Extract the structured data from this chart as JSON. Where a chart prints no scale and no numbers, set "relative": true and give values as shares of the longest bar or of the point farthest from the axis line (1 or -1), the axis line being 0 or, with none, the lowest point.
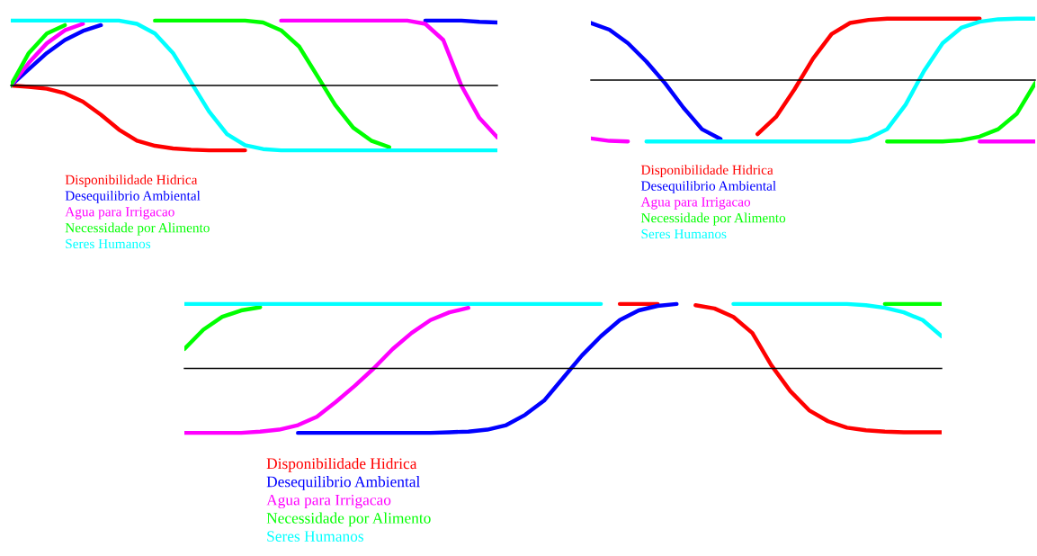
{
  "chart_data": [
    {
      "type": "line",
      "relative": true,
      "legend": "bottom",
      "categories": [
        null,
        null,
        null,
        null,
        null,
        null,
        null,
        null,
        null,
        null,
        null,
        null,
        null,
        null,
        null,
        null,
        null,
        null,
        null,
        null,
        null,
        null,
        null,
        null,
        null,
        null,
        null,
        null
      ],
      "series": [
        {
          "name": "Disponibilidade Hidrica",
          "color": "#ff0000",
          "values": [
            0,
            -0.02,
            -0.05,
            -0.12,
            -0.25,
            -0.45,
            -0.68,
            -0.85,
            -0.93,
            -0.97,
            -0.99,
            -1,
            -1,
            -1,
            null,
            null,
            null,
            null,
            null,
            null,
            null,
            null,
            null,
            null,
            null,
            null,
            null,
            null
          ]
        },
        {
          "name": "Desequilibrio Ambiental",
          "color": "#0000ff",
          "values": [
            0,
            0.25,
            0.5,
            0.7,
            0.84,
            0.93,
            null,
            null,
            null,
            null,
            null,
            null,
            null,
            null,
            null,
            null,
            null,
            null,
            null,
            null,
            null,
            null,
            null,
            1,
            1,
            1,
            0.98,
            0.97
          ]
        },
        {
          "name": "Agua para Irrigacao",
          "color": "#ff00ff",
          "values": [
            0,
            0.35,
            0.65,
            0.85,
            0.95,
            null,
            null,
            null,
            null,
            null,
            null,
            null,
            null,
            null,
            null,
            1,
            1,
            1,
            1,
            1,
            1,
            1,
            1,
            0.95,
            0.7,
            0,
            -0.5,
            -0.8
          ]
        },
        {
          "name": "Necessidade por Alimento",
          "color": "#00ff00",
          "values": [
            0,
            0.5,
            0.8,
            0.93,
            null,
            null,
            null,
            null,
            1,
            1,
            1,
            1,
            1,
            1,
            0.97,
            0.85,
            0.6,
            0.15,
            -0.3,
            -0.65,
            -0.85,
            -0.95,
            null,
            null,
            null,
            null,
            null,
            null
          ]
        },
        {
          "name": "Seres Humanos",
          "color": "#00ffff",
          "values": [
            1,
            1,
            1,
            1,
            1,
            1,
            1,
            0.95,
            0.8,
            0.5,
            0.05,
            -0.4,
            -0.75,
            -0.92,
            -0.98,
            -1,
            -1,
            -1,
            -1,
            -1,
            -1,
            -1,
            -1,
            -1,
            -1,
            -1,
            -1,
            -1
          ]
        }
      ]
    },
    {
      "type": "line",
      "relative": true,
      "legend": "bottom",
      "categories": [
        null,
        null,
        null,
        null,
        null,
        null,
        null,
        null,
        null,
        null,
        null,
        null,
        null,
        null,
        null,
        null,
        null,
        null,
        null,
        null,
        null,
        null,
        null,
        null,
        null
      ],
      "series": [
        {
          "name": "Disponibilidade Hidrica",
          "color": "#ff0000",
          "values": [
            null,
            null,
            null,
            null,
            null,
            null,
            null,
            null,
            null,
            -0.88,
            -0.6,
            -0.15,
            0.35,
            0.75,
            0.93,
            0.98,
            1,
            1,
            1,
            1,
            1,
            1,
            null,
            null,
            null
          ]
        },
        {
          "name": "Desequilibrio Ambiental",
          "color": "#0000ff",
          "values": [
            0.93,
            0.82,
            0.6,
            0.3,
            -0.05,
            -0.45,
            -0.8,
            -0.96,
            null,
            null,
            null,
            null,
            null,
            null,
            null,
            null,
            null,
            null,
            null,
            null,
            null,
            null,
            null,
            null,
            null
          ]
        },
        {
          "name": "Agua para Irrigacao",
          "color": "#ff00ff",
          "values": [
            -0.95,
            -0.99,
            -1,
            null,
            null,
            null,
            null,
            null,
            null,
            null,
            null,
            null,
            null,
            null,
            null,
            null,
            null,
            null,
            null,
            null,
            null,
            -1,
            -1,
            -1,
            -1
          ]
        },
        {
          "name": "Necessidade por Alimento",
          "color": "#00ff00",
          "values": [
            null,
            null,
            null,
            null,
            null,
            null,
            null,
            null,
            null,
            null,
            null,
            null,
            null,
            null,
            null,
            null,
            -1,
            -1,
            -1,
            -1,
            -0.98,
            -0.92,
            -0.8,
            -0.55,
            -0.05
          ]
        },
        {
          "name": "Seres Humanos",
          "color": "#00ffff",
          "values": [
            null,
            null,
            null,
            -1,
            -1,
            -1,
            -1,
            -1,
            -1,
            -1,
            -1,
            -1,
            -1,
            -1,
            -1,
            -0.95,
            -0.8,
            -0.4,
            0.15,
            0.6,
            0.85,
            0.95,
            0.99,
            1,
            1
          ]
        }
      ]
    },
    {
      "type": "line",
      "relative": true,
      "legend": "bottom",
      "categories": [
        null,
        null,
        null,
        null,
        null,
        null,
        null,
        null,
        null,
        null,
        null,
        null,
        null,
        null,
        null,
        null,
        null,
        null,
        null,
        null,
        null,
        null,
        null,
        null,
        null,
        null,
        null,
        null,
        null,
        null,
        null,
        null,
        null,
        null,
        null,
        null,
        null,
        null,
        null,
        null,
        null
      ],
      "series": [
        {
          "name": "Disponibilidade Hidrica",
          "color": "#ff0000",
          "values": [
            null,
            null,
            null,
            null,
            null,
            null,
            null,
            null,
            null,
            null,
            null,
            null,
            null,
            null,
            null,
            null,
            null,
            null,
            null,
            null,
            null,
            null,
            null,
            1,
            1,
            1,
            null,
            0.98,
            0.93,
            0.8,
            0.55,
            0.05,
            -0.35,
            -0.65,
            -0.82,
            -0.92,
            -0.96,
            -0.98,
            -0.99,
            -0.99,
            -0.99
          ]
        },
        {
          "name": "Desequilibrio Ambiental",
          "color": "#0000ff",
          "values": [
            null,
            null,
            null,
            null,
            null,
            null,
            -1,
            -1,
            -1,
            -1,
            -1,
            -1,
            -1,
            -1,
            -0.99,
            -0.98,
            -0.95,
            -0.88,
            -0.72,
            -0.5,
            -0.15,
            0.2,
            0.5,
            0.75,
            0.9,
            0.97,
            1,
            null,
            null,
            null,
            null,
            null,
            null,
            null,
            null,
            null,
            null,
            null,
            null,
            null,
            null
          ]
        },
        {
          "name": "Agua para Irrigacao",
          "color": "#ff00ff",
          "values": [
            -1,
            -1,
            -1,
            -1,
            -0.98,
            -0.95,
            -0.88,
            -0.75,
            -0.52,
            -0.27,
            0,
            0.3,
            0.55,
            0.75,
            0.87,
            0.94,
            null,
            null,
            null,
            null,
            null,
            null,
            null,
            null,
            null,
            null,
            null,
            null,
            null,
            null,
            null,
            null,
            null,
            null,
            null,
            null,
            null,
            null,
            null,
            null,
            null
          ]
        },
        {
          "name": "Necessidade por Alimento",
          "color": "#00ff00",
          "values": [
            0.3,
            0.6,
            0.8,
            0.9,
            0.95,
            null,
            null,
            null,
            null,
            null,
            null,
            null,
            null,
            null,
            null,
            null,
            null,
            null,
            null,
            null,
            null,
            null,
            null,
            null,
            null,
            null,
            null,
            null,
            null,
            null,
            null,
            null,
            null,
            null,
            null,
            null,
            null,
            1,
            1,
            1,
            1
          ]
        },
        {
          "name": "Seres Humanos",
          "color": "#00ffff",
          "values": [
            1,
            1,
            1,
            1,
            1,
            1,
            1,
            1,
            1,
            1,
            1,
            1,
            1,
            1,
            1,
            1,
            1,
            1,
            1,
            1,
            1,
            1,
            1,
            null,
            null,
            null,
            null,
            null,
            null,
            1,
            1,
            1,
            1,
            1,
            1,
            1,
            0.98,
            0.94,
            0.87,
            0.75,
            0.5
          ]
        }
      ]
    }
  ]
}
